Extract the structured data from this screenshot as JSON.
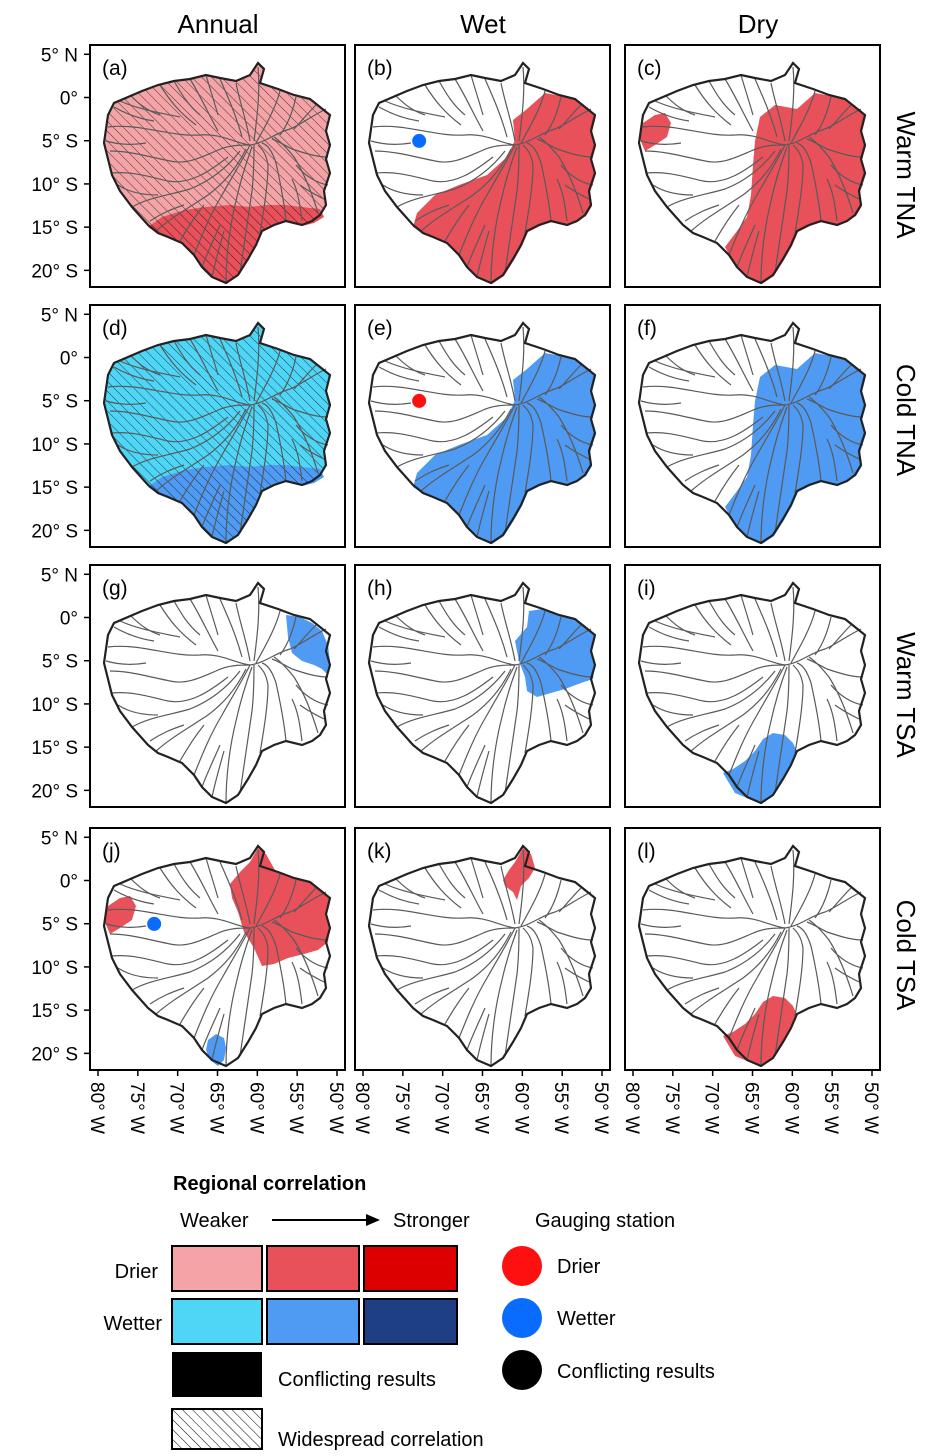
{
  "columns": [
    "Annual",
    "Wet",
    "Dry"
  ],
  "rows": [
    "Warm TNA",
    "Cold TNA",
    "Warm TSA",
    "Cold TSA"
  ],
  "lat_ticks": [
    "5° N",
    "0°",
    "5° S",
    "10° S",
    "15° S",
    "20° S"
  ],
  "lon_ticks": [
    "80° W",
    "75° W",
    "70° W",
    "65° W",
    "60° W",
    "55° W",
    "50° W"
  ],
  "panels": [
    {
      "label": "(a)",
      "regions": [
        {
          "type": "widespread",
          "color": "drier_weak"
        },
        {
          "type": "south",
          "color": "drier_mid"
        }
      ],
      "station": null
    },
    {
      "label": "(b)",
      "regions": [
        {
          "type": "east_south",
          "color": "drier_mid"
        }
      ],
      "station": {
        "lon": -73.2,
        "lat": -4.1,
        "color": "wetter"
      }
    },
    {
      "label": "(c)",
      "regions": [
        {
          "type": "east_full",
          "color": "drier_mid"
        },
        {
          "type": "nw_small",
          "color": "drier_mid"
        }
      ],
      "station": null
    },
    {
      "label": "(d)",
      "regions": [
        {
          "type": "widespread",
          "color": "wetter_weak"
        },
        {
          "type": "south",
          "color": "wetter_mid"
        }
      ],
      "station": null
    },
    {
      "label": "(e)",
      "regions": [
        {
          "type": "east_south",
          "color": "wetter_mid"
        }
      ],
      "station": {
        "lon": -73.2,
        "lat": -4.1,
        "color": "drier"
      }
    },
    {
      "label": "(f)",
      "regions": [
        {
          "type": "east_full",
          "color": "wetter_mid"
        }
      ],
      "station": null
    },
    {
      "label": "(g)",
      "regions": [
        {
          "type": "ne_corner",
          "color": "wetter_mid"
        }
      ],
      "station": null
    },
    {
      "label": "(h)",
      "regions": [
        {
          "type": "ne_big",
          "color": "wetter_mid"
        }
      ],
      "station": null
    },
    {
      "label": "(i)",
      "regions": [
        {
          "type": "se_south",
          "color": "wetter_mid"
        }
      ],
      "station": null
    },
    {
      "label": "(j)",
      "regions": [
        {
          "type": "ne_big2",
          "color": "drier_mid"
        },
        {
          "type": "nw_small",
          "color": "drier_mid"
        },
        {
          "type": "s_small",
          "color": "wetter_mid"
        }
      ],
      "station": {
        "lon": -73.2,
        "lat": -4.1,
        "color": "wetter"
      }
    },
    {
      "label": "(k)",
      "regions": [
        {
          "type": "n_small",
          "color": "drier_mid"
        }
      ],
      "station": null
    },
    {
      "label": "(l)",
      "regions": [
        {
          "type": "se_south",
          "color": "drier_mid"
        }
      ],
      "station": null
    }
  ],
  "colors": {
    "drier_weak": "#f4a4a6",
    "drier_mid": "#e8505a",
    "drier_strong": "#dc0000",
    "wetter_weak": "#4fd6f6",
    "wetter_mid": "#4f9af2",
    "wetter_strong": "#1f3f84",
    "conflict": "#000000",
    "station_drier": "#ff1010",
    "station_wetter": "#0a6bff"
  },
  "legend": {
    "title": "Regional correlation",
    "weaker": "Weaker",
    "stronger": "Stronger",
    "gauging": "Gauging station",
    "drier": "Drier",
    "wetter": "Wetter",
    "conflicting": "Conflicting results",
    "widespread": "Widespread correlation",
    "station_drier": "Drier",
    "station_wetter": "Wetter",
    "station_conflicting": "Conflicting results"
  }
}
